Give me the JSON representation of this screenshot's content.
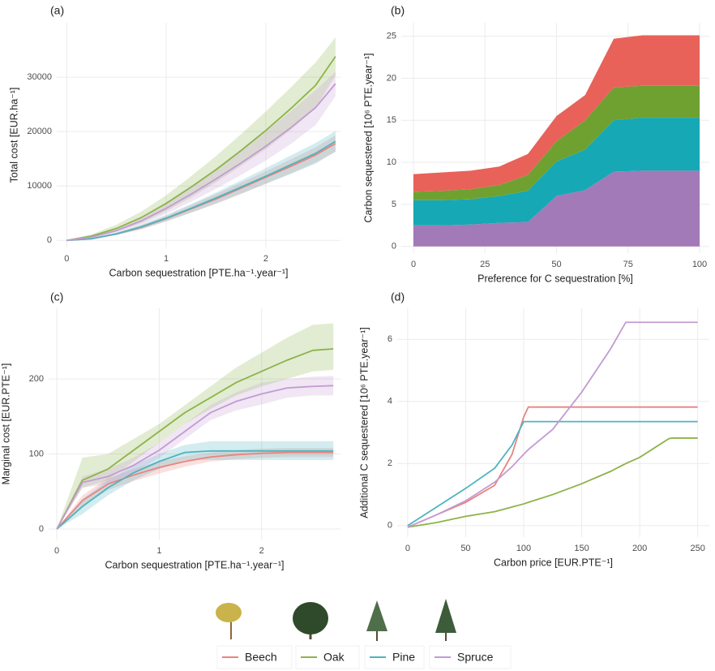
{
  "chart_data": [
    {
      "type": "line",
      "label": "(a)",
      "x_label": "Carbon sequestration [PTE.ha⁻¹.year⁻¹]",
      "y_label": "Total cost [EUR.ha⁻¹]",
      "xlim": [
        -0.1,
        2.75
      ],
      "ylim": [
        -1300,
        40000
      ],
      "xticks": [
        0,
        1,
        2
      ],
      "yticks": [
        0,
        10000,
        20000,
        30000
      ],
      "grid": true,
      "x": [
        0,
        0.25,
        0.5,
        0.75,
        1,
        1.25,
        1.5,
        1.75,
        2,
        2.25,
        2.5,
        2.7
      ],
      "series": [
        {
          "name": "Beech",
          "color": "#e8847e",
          "values": [
            0,
            300,
            1200,
            2400,
            4000,
            5800,
            7600,
            9600,
            11600,
            13600,
            15700,
            17800
          ],
          "upper": [
            0,
            400,
            1400,
            2800,
            4500,
            6500,
            8500,
            10600,
            12700,
            14900,
            17100,
            19300
          ],
          "lower": [
            0,
            200,
            1000,
            2000,
            3500,
            5100,
            6700,
            8500,
            10400,
            12300,
            14300,
            16300
          ]
        },
        {
          "name": "Oak",
          "color": "#8db34a",
          "values": [
            0,
            800,
            2200,
            4200,
            6800,
            9800,
            13000,
            16500,
            20200,
            24200,
            28500,
            33800
          ],
          "upper": [
            0,
            1100,
            2900,
            5300,
            8300,
            11800,
            15500,
            19500,
            23700,
            28100,
            32700,
            37300
          ],
          "lower": [
            0,
            500,
            1600,
            3200,
            5400,
            7900,
            10700,
            13700,
            16800,
            20300,
            24300,
            30300
          ]
        },
        {
          "name": "Pine",
          "color": "#4fb3bf",
          "values": [
            0,
            300,
            1200,
            2500,
            4100,
            5900,
            7800,
            9800,
            11800,
            13900,
            16000,
            18200
          ],
          "upper": [
            0,
            400,
            1400,
            2900,
            4700,
            6700,
            8800,
            11000,
            13300,
            15600,
            17900,
            20100
          ],
          "lower": [
            0,
            200,
            1000,
            2100,
            3500,
            5100,
            6800,
            8600,
            10400,
            12200,
            14100,
            16300
          ]
        },
        {
          "name": "Spruce",
          "color": "#c39bd3",
          "values": [
            0,
            600,
            1800,
            3600,
            5900,
            8500,
            11300,
            14200,
            17300,
            20700,
            24400,
            28800
          ],
          "upper": [
            0,
            800,
            2200,
            4300,
            7000,
            10000,
            13200,
            16500,
            20000,
            23700,
            27600,
            31000
          ],
          "lower": [
            0,
            400,
            1400,
            2900,
            4900,
            7100,
            9500,
            12000,
            14700,
            17700,
            21200,
            26500
          ]
        }
      ]
    },
    {
      "type": "area",
      "label": "(b)",
      "x_label": "Preference for C sequestration [%]",
      "y_label": "Carbon sequestered [10⁶ PTE.year⁻¹]",
      "xlim": [
        -4.25,
        103.4
      ],
      "ylim": [
        -0.8,
        26.6
      ],
      "xticks": [
        0,
        25,
        50,
        75,
        100
      ],
      "yticks": [
        0,
        5,
        10,
        15,
        20,
        25
      ],
      "grid": true,
      "x": [
        0,
        10,
        20,
        30,
        40,
        50,
        60,
        70,
        80,
        90,
        100
      ],
      "series": [
        {
          "name": "Spruce",
          "color": "#a27ab8",
          "values": [
            2.5,
            2.5,
            2.6,
            2.8,
            2.9,
            6.0,
            6.7,
            8.9,
            9.0,
            9.0,
            9.0
          ]
        },
        {
          "name": "Pine",
          "color": "#16a8b4",
          "values": [
            3.0,
            3.0,
            3.0,
            3.2,
            3.7,
            4.1,
            4.8,
            6.1,
            6.3,
            6.3,
            6.3
          ]
        },
        {
          "name": "Oak",
          "color": "#6fa131",
          "values": [
            1.0,
            1.1,
            1.2,
            1.3,
            1.9,
            2.4,
            3.5,
            3.9,
            3.8,
            3.8,
            3.8
          ]
        },
        {
          "name": "Beech",
          "color": "#e8625a",
          "values": [
            2.1,
            2.2,
            2.2,
            2.2,
            2.5,
            3.0,
            3.0,
            5.8,
            6.0,
            6.0,
            6.0
          ]
        }
      ]
    },
    {
      "type": "line",
      "label": "(c)",
      "x_label": "Carbon sequestration [PTE.ha⁻¹.year⁻¹]",
      "y_label": "Marginal cost [EUR.PTE⁻¹]",
      "xlim": [
        -0.08,
        2.77
      ],
      "ylim": [
        -14,
        294
      ],
      "xticks": [
        0,
        1,
        2
      ],
      "yticks": [
        0,
        100,
        200
      ],
      "grid": true,
      "x": [
        0,
        0.25,
        0.5,
        0.75,
        1,
        1.25,
        1.5,
        1.75,
        2,
        2.25,
        2.5,
        2.7
      ],
      "series": [
        {
          "name": "Beech",
          "color": "#e8847e",
          "values": [
            0,
            38,
            60,
            72,
            82,
            90,
            96,
            99,
            101,
            102,
            102,
            102
          ],
          "upper": [
            0,
            45,
            68,
            80,
            90,
            97,
            102,
            105,
            107,
            108,
            108,
            108
          ],
          "lower": [
            0,
            30,
            52,
            64,
            74,
            83,
            90,
            93,
            95,
            96,
            96,
            96
          ]
        },
        {
          "name": "Oak",
          "color": "#8db34a",
          "values": [
            0,
            65,
            80,
            105,
            130,
            155,
            175,
            195,
            210,
            225,
            238,
            240
          ],
          "upper": [
            0,
            95,
            100,
            120,
            140,
            165,
            190,
            215,
            235,
            255,
            272,
            274
          ],
          "lower": [
            0,
            55,
            65,
            90,
            115,
            140,
            160,
            178,
            190,
            200,
            210,
            212
          ]
        },
        {
          "name": "Pine",
          "color": "#4fb3bf",
          "values": [
            0,
            30,
            55,
            75,
            90,
            102,
            104,
            104,
            104,
            104,
            104,
            104
          ],
          "upper": [
            0,
            40,
            65,
            85,
            100,
            112,
            117,
            117,
            117,
            117,
            117,
            117
          ],
          "lower": [
            0,
            20,
            45,
            65,
            80,
            92,
            92,
            92,
            92,
            92,
            92,
            92
          ]
        },
        {
          "name": "Spruce",
          "color": "#c39bd3",
          "values": [
            0,
            62,
            70,
            85,
            105,
            130,
            155,
            170,
            180,
            188,
            190,
            191
          ],
          "upper": [
            0,
            70,
            80,
            95,
            115,
            140,
            165,
            182,
            195,
            200,
            203,
            204
          ],
          "lower": [
            0,
            55,
            60,
            75,
            95,
            120,
            145,
            158,
            166,
            175,
            178,
            178
          ]
        }
      ]
    },
    {
      "type": "line",
      "label": "(d)",
      "x_label": "Carbon price [EUR.PTE⁻¹]",
      "y_label": "Additional C sequestered [10⁶ PTE.year⁻¹]",
      "xlim": [
        -9,
        260
      ],
      "ylim": [
        -0.37,
        7
      ],
      "xticks": [
        0,
        50,
        100,
        150,
        200,
        250
      ],
      "yticks": [
        0,
        2,
        4,
        6
      ],
      "grid": true,
      "x": [
        0,
        25,
        50,
        75,
        90,
        100,
        104,
        125,
        150,
        175,
        188,
        200,
        225,
        228,
        250
      ],
      "series": [
        {
          "name": "Beech",
          "color": "#e8847e",
          "values": [
            -0.05,
            0.35,
            0.75,
            1.3,
            2.3,
            3.5,
            3.82,
            3.82,
            3.82,
            3.82,
            3.82,
            3.82,
            3.82,
            3.82,
            3.82
          ]
        },
        {
          "name": "Oak",
          "color": "#8db34a",
          "values": [
            -0.05,
            0.1,
            0.3,
            0.45,
            0.6,
            0.7,
            0.75,
            1.0,
            1.35,
            1.75,
            2.0,
            2.2,
            2.8,
            2.82,
            2.82
          ]
        },
        {
          "name": "Pine",
          "color": "#4fb3bf",
          "values": [
            0,
            0.6,
            1.2,
            1.85,
            2.6,
            3.35,
            3.35,
            3.35,
            3.35,
            3.35,
            3.35,
            3.35,
            3.35,
            3.35,
            3.35
          ]
        },
        {
          "name": "Spruce",
          "color": "#c39bd3",
          "values": [
            -0.05,
            0.35,
            0.8,
            1.4,
            1.9,
            2.3,
            2.45,
            3.1,
            4.3,
            5.7,
            6.55,
            6.55,
            6.55,
            6.55,
            6.55
          ]
        }
      ]
    }
  ]
}
